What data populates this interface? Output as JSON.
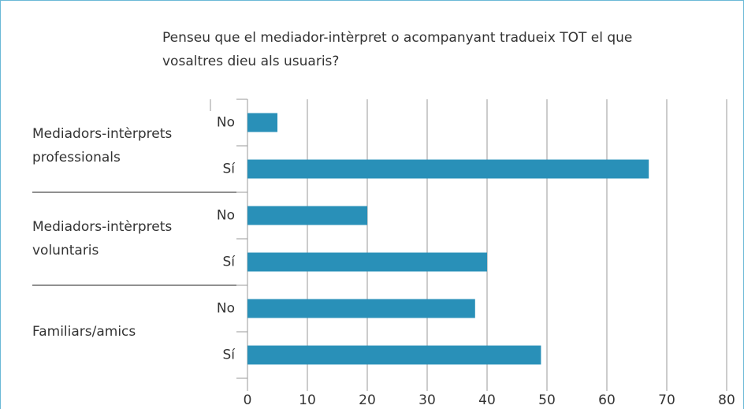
{
  "chart_data": {
    "type": "barh",
    "title": "Penseu que el mediador-intèrpret o acompanyant tradueix TOT el que vosaltres dieu als usuaris?",
    "groups": [
      "Mediadors-intèrprets professionals",
      "Mediadors-intèrprets voluntaris",
      "Familiars/amics"
    ],
    "categories": [
      "No",
      "Sí",
      "No",
      "Sí",
      "No",
      "Sí"
    ],
    "values": [
      5,
      67,
      20,
      40,
      38,
      49
    ],
    "color": "#2990b8",
    "xlim": [
      0,
      80
    ],
    "xticks": [
      0,
      10,
      20,
      30,
      40,
      50,
      60,
      70,
      80
    ],
    "grid": true
  }
}
